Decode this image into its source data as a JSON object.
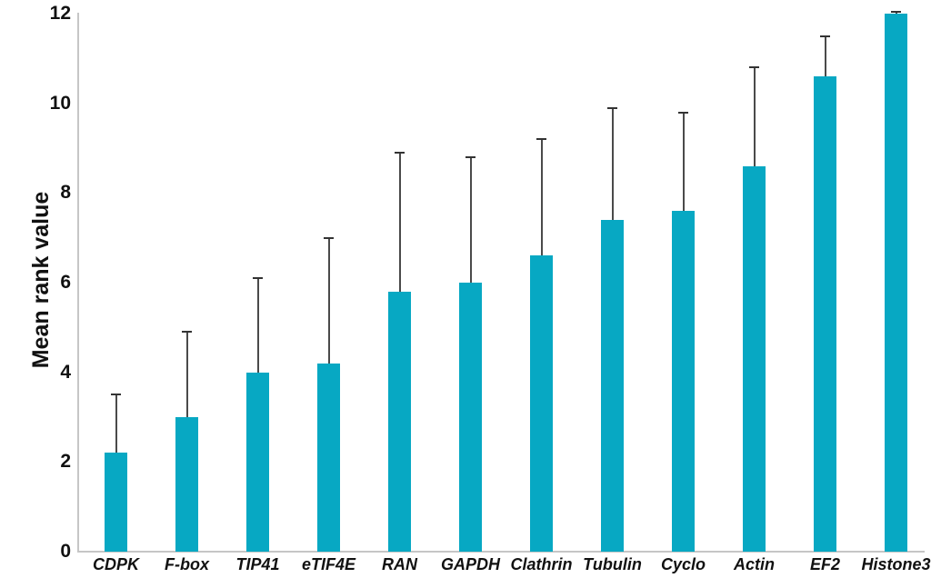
{
  "chart_data": {
    "type": "bar",
    "ylabel": "Mean rank value",
    "xlabel": "",
    "categories": [
      "CDPK",
      "F-box",
      "TIP41",
      "eTIF4E",
      "RAN",
      "GAPDH",
      "Clathrin",
      "Tubulin",
      "Cyclo",
      "Actin",
      "EF2",
      "Histone3"
    ],
    "values": [
      2.2,
      3.0,
      4.0,
      4.2,
      5.8,
      6.0,
      6.6,
      7.4,
      7.6,
      8.6,
      10.6,
      12.0
    ],
    "errors_upper": [
      1.3,
      1.9,
      2.1,
      2.8,
      3.1,
      2.8,
      2.6,
      2.5,
      2.2,
      2.2,
      0.9,
      0.05
    ],
    "ylim": [
      0,
      12
    ],
    "yticks": [
      0,
      2,
      4,
      6,
      8,
      10,
      12
    ],
    "grid": false,
    "legend": "none",
    "bar_color": "#07a8c3",
    "error_bar_color": "#4a4a4a",
    "error_cap_color": "#333333",
    "axis_line_color": "#c6c6c6",
    "text_color": "#111111"
  }
}
